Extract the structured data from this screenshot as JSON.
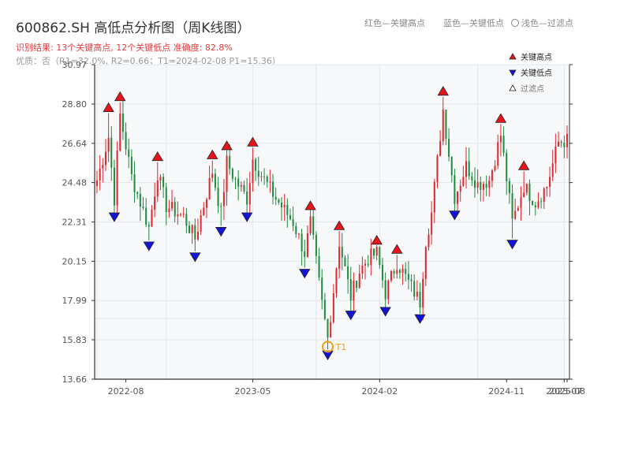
{
  "header": {
    "title": "600862.SH 高低点分析图（周K线图）",
    "result_line": "识别结果: 13个关键高点, 12个关键低点   准确度: 82.8%",
    "quality_line": "优质：否（R1=32.0%, R2=0.66；T1=2024-02-08 P1=15.36）"
  },
  "top_legend": {
    "red_text": "红色—关键高点",
    "blue_text": "蓝色—关键低点",
    "light_text": "浅色—过滤点"
  },
  "colors": {
    "up": "#e0262d",
    "down": "#1f8a3c",
    "high_marker": "#e8141c",
    "low_marker": "#1414d8",
    "t1_marker": "#f39c12",
    "plot_bg": "#f6f8fa",
    "grid": "#e3e6ea",
    "axis": "#333333"
  },
  "chart_data": {
    "type": "candlestick",
    "title": "600862.SH 高低点分析图（周K线图）",
    "y_ticks": [
      "13.66",
      "15.83",
      "17.99",
      "20.15",
      "22.31",
      "24.48",
      "26.64",
      "28.80",
      "30.97"
    ],
    "ylim": [
      13.66,
      30.97
    ],
    "x_ticks": [
      "2022-08",
      "2023-05",
      "2024-02",
      "2024-11",
      "2025-07",
      "2025-08"
    ],
    "legend": [
      {
        "name": "关键高点",
        "marker": "triangle-up",
        "color": "#e8141c"
      },
      {
        "name": "关键低点",
        "marker": "triangle-down",
        "color": "#1414d8"
      },
      {
        "name": "过滤点",
        "marker": "triangle-up-outline",
        "color": "#ffffff"
      }
    ],
    "legend_placement": "top-right",
    "grid": true,
    "key_highs": [
      {
        "i": 4,
        "price": 28.3
      },
      {
        "i": 8,
        "price": 28.9
      },
      {
        "i": 21,
        "price": 25.6
      },
      {
        "i": 40,
        "price": 25.7
      },
      {
        "i": 45,
        "price": 26.2
      },
      {
        "i": 54,
        "price": 26.4
      },
      {
        "i": 74,
        "price": 22.9
      },
      {
        "i": 84,
        "price": 21.8
      },
      {
        "i": 97,
        "price": 21.0
      },
      {
        "i": 104,
        "price": 20.5
      },
      {
        "i": 120,
        "price": 29.2
      },
      {
        "i": 140,
        "price": 27.7
      },
      {
        "i": 148,
        "price": 25.1
      }
    ],
    "key_lows": [
      {
        "i": 6,
        "price": 22.9
      },
      {
        "i": 18,
        "price": 21.3
      },
      {
        "i": 34,
        "price": 20.7
      },
      {
        "i": 43,
        "price": 22.1
      },
      {
        "i": 52,
        "price": 22.9
      },
      {
        "i": 72,
        "price": 19.8
      },
      {
        "i": 80,
        "price": 15.3
      },
      {
        "i": 88,
        "price": 17.5
      },
      {
        "i": 100,
        "price": 17.7
      },
      {
        "i": 112,
        "price": 17.3
      },
      {
        "i": 124,
        "price": 23.0
      },
      {
        "i": 144,
        "price": 21.4
      }
    ],
    "t1": {
      "i": 80,
      "price": 15.36,
      "label": "T1"
    },
    "n_bars": 164,
    "bar_range_dates": [
      "2022-06",
      "2025-08"
    ],
    "close_anchors": [
      [
        0,
        24.6
      ],
      [
        4,
        27.0
      ],
      [
        6,
        23.6
      ],
      [
        8,
        28.2
      ],
      [
        12,
        24.8
      ],
      [
        18,
        22.0
      ],
      [
        21,
        25.0
      ],
      [
        24,
        23.2
      ],
      [
        30,
        22.6
      ],
      [
        34,
        21.4
      ],
      [
        40,
        25.1
      ],
      [
        43,
        22.8
      ],
      [
        45,
        25.6
      ],
      [
        48,
        24.6
      ],
      [
        52,
        23.6
      ],
      [
        54,
        25.8
      ],
      [
        57,
        24.9
      ],
      [
        62,
        23.6
      ],
      [
        68,
        22.3
      ],
      [
        72,
        20.6
      ],
      [
        74,
        22.3
      ],
      [
        78,
        17.8
      ],
      [
        80,
        15.9
      ],
      [
        84,
        21.2
      ],
      [
        88,
        18.2
      ],
      [
        91,
        19.6
      ],
      [
        94,
        20.3
      ],
      [
        97,
        20.6
      ],
      [
        100,
        18.4
      ],
      [
        104,
        20.1
      ],
      [
        108,
        19.0
      ],
      [
        112,
        17.9
      ],
      [
        114,
        21.3
      ],
      [
        116,
        22.8
      ],
      [
        120,
        28.5
      ],
      [
        124,
        23.7
      ],
      [
        128,
        25.4
      ],
      [
        132,
        24.4
      ],
      [
        136,
        24.6
      ],
      [
        140,
        27.1
      ],
      [
        144,
        22.3
      ],
      [
        148,
        24.3
      ],
      [
        152,
        23.4
      ],
      [
        156,
        24.3
      ],
      [
        160,
        26.7
      ],
      [
        163,
        26.8
      ]
    ]
  }
}
